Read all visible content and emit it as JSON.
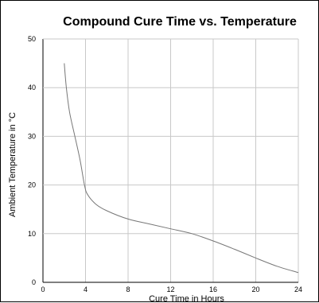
{
  "chart_data": {
    "type": "line",
    "title": "Compound Cure Time vs. Temperature",
    "xlabel": "Cure Time in Hours",
    "ylabel": "Ambient Temperature in °C",
    "xlim": [
      0,
      24
    ],
    "ylim": [
      0,
      50
    ],
    "xticks": [
      0,
      4,
      8,
      12,
      16,
      20,
      24
    ],
    "yticks": [
      0,
      10,
      20,
      30,
      40,
      50
    ],
    "grid": true,
    "colors": {
      "line": "#777777",
      "grid": "#c8c8c8",
      "axis": "#000000"
    },
    "series": [
      {
        "x": [
          2.0,
          2.2,
          2.5,
          3.0,
          3.5,
          3.9,
          4.2,
          5.0,
          6.0,
          8.0,
          10.0,
          12.0,
          14.0,
          16.0,
          18.0,
          20.0,
          22.0,
          24.0
        ],
        "y": [
          45,
          40,
          35,
          30,
          25,
          20,
          18,
          16,
          14.7,
          13,
          12,
          11,
          10,
          8.5,
          6.8,
          5,
          3.3,
          2
        ]
      }
    ]
  }
}
